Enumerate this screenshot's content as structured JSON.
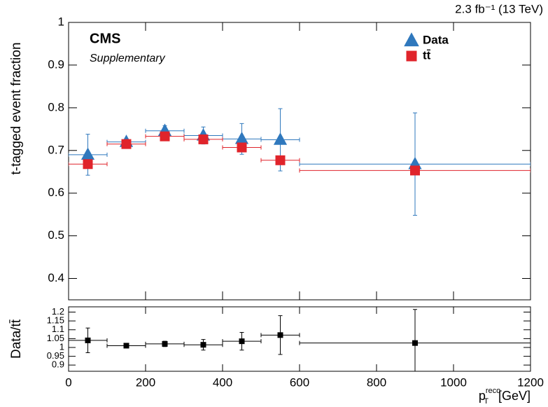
{
  "chart_data": [
    {
      "type": "errorbar",
      "lumi": "2.3 fb⁻¹ (13 TeV)",
      "experiment": "CMS",
      "subtitle": "Supplementary",
      "ylabel": "t-tagged event fraction",
      "x": [
        50,
        150,
        250,
        350,
        450,
        550,
        900
      ],
      "xerr": [
        50,
        50,
        50,
        50,
        50,
        50,
        300
      ],
      "xlim": [
        0,
        1200
      ],
      "xticks": [
        0,
        200,
        400,
        600,
        800,
        1000,
        1200
      ],
      "ylim": [
        0.35,
        1
      ],
      "yticks": [
        0.4,
        0.5,
        0.6,
        0.7,
        0.8,
        0.9,
        1
      ],
      "legend": "upper right",
      "series": [
        {
          "name": "Data",
          "color": "#2f78bd",
          "marker": "triangle",
          "values": [
            0.69,
            0.72,
            0.746,
            0.735,
            0.727,
            0.725,
            0.668
          ],
          "errors": [
            0.048,
            0.006,
            0.012,
            0.02,
            0.036,
            0.073,
            0.12
          ]
        },
        {
          "name": "tt̄",
          "color": "#e0242b",
          "marker": "square",
          "values": [
            0.668,
            0.715,
            0.733,
            0.726,
            0.707,
            0.677,
            0.653
          ]
        }
      ]
    },
    {
      "type": "errorbar",
      "ylabel": "Data/tt̄",
      "xlabel": {
        "symbol": "p",
        "sub": "T",
        "sup": "reco",
        "unit": "[GeV]"
      },
      "x": [
        50,
        150,
        250,
        350,
        450,
        550,
        900
      ],
      "xerr": [
        50,
        50,
        50,
        50,
        50,
        50,
        300
      ],
      "xlim": [
        0,
        1200
      ],
      "xticks": [
        0,
        200,
        400,
        600,
        800,
        1000,
        1200
      ],
      "ylim": [
        0.865,
        1.23
      ],
      "yticks": [
        0.9,
        0.95,
        1,
        1.05,
        1.1,
        1.15,
        1.2
      ],
      "series": [
        {
          "color": "#000000",
          "marker": "square",
          "values": [
            1.04,
            1.01,
            1.02,
            1.015,
            1.035,
            1.07,
            1.025
          ],
          "errors": [
            0.07,
            0.01,
            0.015,
            0.03,
            0.05,
            0.11,
            0.19
          ]
        }
      ]
    }
  ]
}
